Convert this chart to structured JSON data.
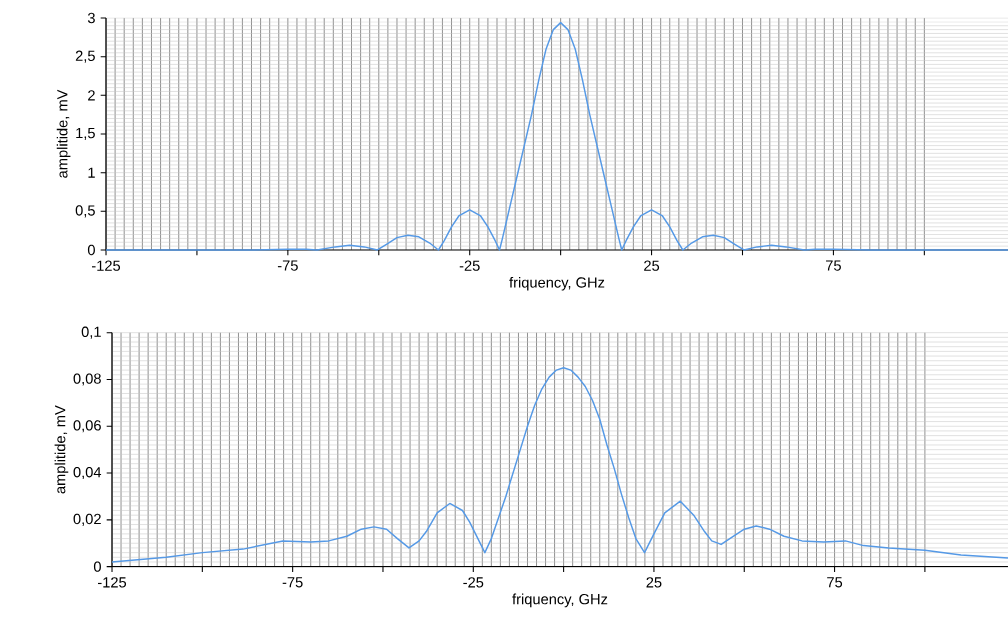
{
  "chart_data": [
    {
      "type": "line",
      "xlabel": "friquency, GHz",
      "ylabel": "amplitide, mV",
      "color": "#5599e6",
      "grid": true,
      "x": [
        -125,
        -100,
        -85,
        -75,
        -70,
        -67,
        -62,
        -58,
        -54,
        -50.4,
        -48,
        -45,
        -42,
        -39,
        -36,
        -33.6,
        -32,
        -30,
        -28,
        -25,
        -22,
        -20,
        -18,
        -16.8,
        -16,
        -14,
        -12,
        -10,
        -8,
        -6,
        -4,
        -2,
        0,
        2,
        4,
        6,
        8,
        10,
        12,
        14,
        16,
        16.8,
        18,
        20,
        22,
        25,
        28,
        30,
        32,
        33.6,
        36,
        39,
        42,
        45,
        48,
        50.4,
        54,
        58,
        62,
        67,
        70,
        75,
        85,
        100,
        123
      ],
      "values": [
        0,
        0,
        0,
        0.01,
        0.01,
        0,
        0.04,
        0.06,
        0.04,
        0,
        0.07,
        0.16,
        0.19,
        0.17,
        0.09,
        0,
        0.12,
        0.3,
        0.44,
        0.52,
        0.44,
        0.3,
        0.12,
        0,
        0.15,
        0.55,
        0.95,
        1.35,
        1.75,
        2.2,
        2.6,
        2.85,
        2.94,
        2.85,
        2.6,
        2.2,
        1.75,
        1.35,
        0.95,
        0.55,
        0.15,
        0,
        0.12,
        0.3,
        0.44,
        0.52,
        0.44,
        0.3,
        0.12,
        0,
        0.09,
        0.17,
        0.19,
        0.16,
        0.07,
        0,
        0.04,
        0.06,
        0.04,
        0,
        0.01,
        0.01,
        0,
        0,
        0
      ],
      "xlim": [
        -125,
        123
      ],
      "ylim": [
        0,
        3
      ],
      "xticks": [
        -125,
        {
          "value": -100,
          "label": null
        },
        -75,
        {
          "value": -50,
          "label": null
        },
        -25,
        {
          "value": 0,
          "label": null
        },
        25,
        {
          "value": 50,
          "label": null
        },
        75,
        {
          "value": 100,
          "label": null
        }
      ],
      "yticks": [
        0,
        {
          "value": 0.5,
          "label": "0,5"
        },
        1,
        {
          "value": 1.5,
          "label": "1,5"
        },
        2,
        {
          "value": 2.5,
          "label": "2,5"
        },
        3
      ]
    },
    {
      "type": "line",
      "xlabel": "friquency, GHz",
      "ylabel": "amplitide, mV",
      "color": "#5599e6",
      "grid": true,
      "x": [
        -125,
        -110,
        -100,
        -88.7,
        -77.7,
        -70,
        -65,
        -60,
        -56,
        -52.5,
        -49,
        -46,
        -42.8,
        -40,
        -38,
        -35,
        -31.5,
        -28,
        -26,
        -21.8,
        -20,
        -18,
        -16,
        -14,
        -12,
        -10,
        -8,
        -6,
        -4,
        -2,
        0,
        2,
        4,
        6,
        8,
        10,
        12,
        14,
        16,
        18,
        20,
        22.4,
        25,
        28,
        32.3,
        36,
        39,
        41,
        43.6,
        46,
        50,
        53.3,
        57,
        61,
        66,
        72,
        78,
        83,
        90,
        100,
        110,
        123
      ],
      "values": [
        0.002,
        0.004,
        0.006,
        0.0075,
        0.011,
        0.0105,
        0.011,
        0.013,
        0.016,
        0.017,
        0.016,
        0.012,
        0.008,
        0.011,
        0.015,
        0.023,
        0.027,
        0.024,
        0.019,
        0.006,
        0.012,
        0.021,
        0.03,
        0.04,
        0.05,
        0.06,
        0.069,
        0.076,
        0.081,
        0.084,
        0.085,
        0.084,
        0.081,
        0.077,
        0.071,
        0.063,
        0.052,
        0.042,
        0.031,
        0.021,
        0.012,
        0.006,
        0.014,
        0.023,
        0.028,
        0.022,
        0.015,
        0.011,
        0.0095,
        0.012,
        0.016,
        0.0174,
        0.016,
        0.013,
        0.011,
        0.0105,
        0.011,
        0.009,
        0.008,
        0.007,
        0.005,
        0.0037
      ],
      "xlim": [
        -125,
        123
      ],
      "ylim": [
        0,
        0.1
      ],
      "xticks": [
        -125,
        {
          "value": -100,
          "label": null
        },
        -75,
        {
          "value": -50,
          "label": null
        },
        -25,
        {
          "value": 0,
          "label": null
        },
        25,
        {
          "value": 50,
          "label": null
        },
        75,
        {
          "value": 100,
          "label": null
        }
      ],
      "yticks": [
        0,
        {
          "value": 0.02,
          "label": "0,02"
        },
        {
          "value": 0.04,
          "label": "0,04"
        },
        {
          "value": 0.06,
          "label": "0,06"
        },
        {
          "value": 0.08,
          "label": "0,08"
        },
        {
          "value": 0.1,
          "label": "0,1"
        }
      ]
    }
  ]
}
